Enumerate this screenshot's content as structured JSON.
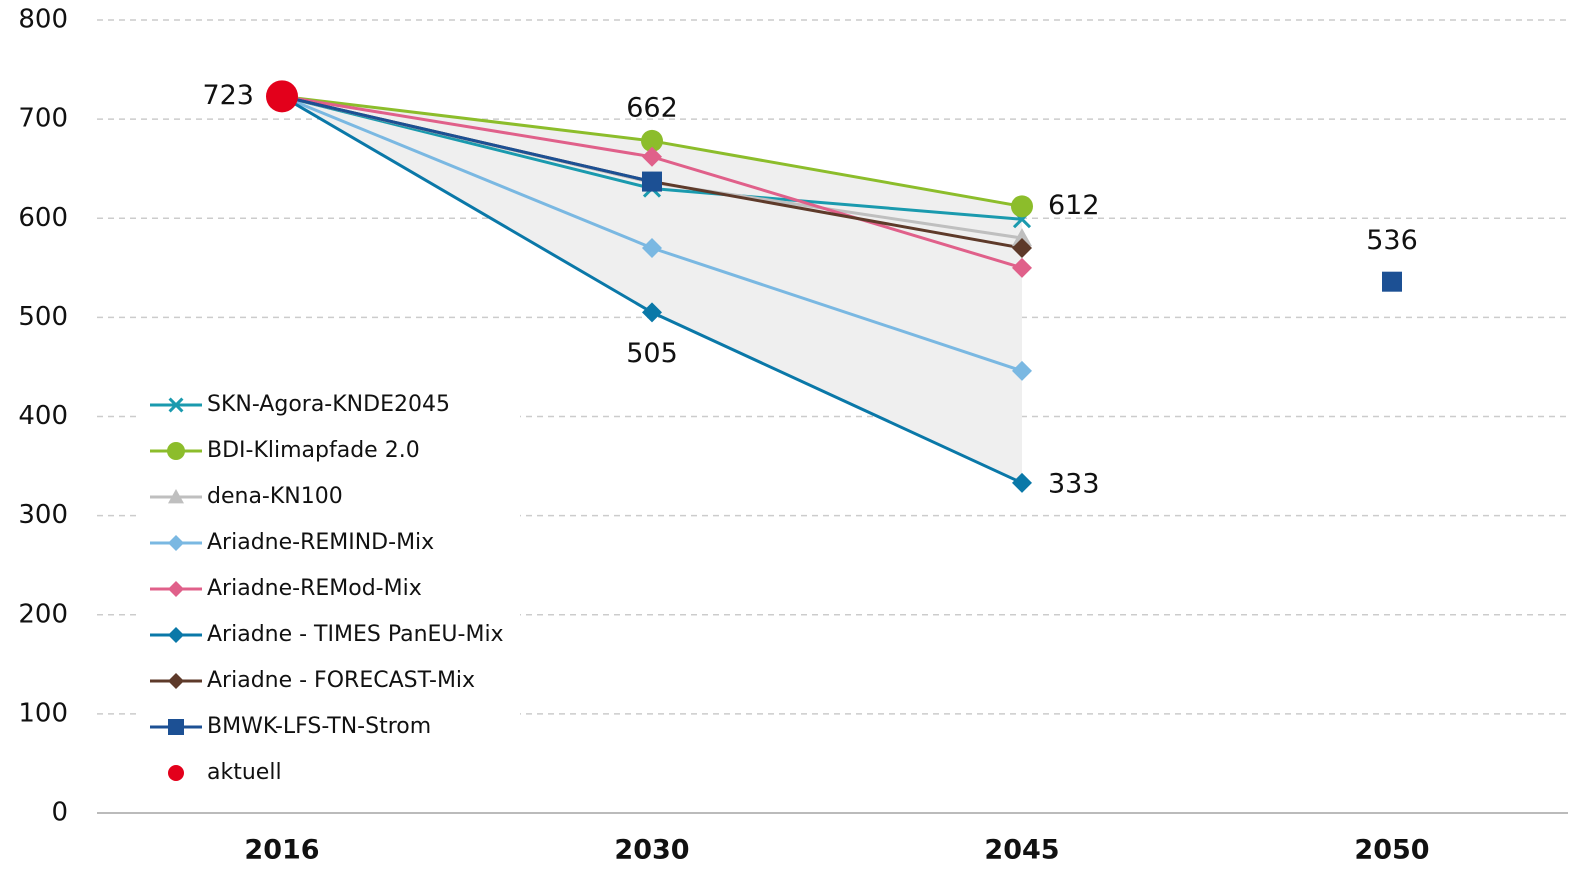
{
  "chart_data": {
    "type": "line",
    "categories": [
      "2016",
      "2030",
      "2045",
      "2050"
    ],
    "ylim": [
      0,
      800
    ],
    "yticks": [
      0,
      100,
      200,
      300,
      400,
      500,
      600,
      700,
      800
    ],
    "grid": true,
    "legend": "lower left",
    "range_band": true,
    "series": [
      {
        "name": "SKN-Agora-KNDE2045",
        "color": "#1a9aae",
        "marker": "x",
        "values": [
          723,
          630,
          599,
          null
        ]
      },
      {
        "name": "BDI-Klimapfade 2.0",
        "color": "#8cbd2b",
        "marker": "circle",
        "values": [
          723,
          678,
          612,
          null
        ],
        "value_labels": [
          null,
          null,
          "612",
          null
        ]
      },
      {
        "name": "dena-KN100",
        "color": "#bfbfbf",
        "marker": "triangle",
        "values": [
          723,
          636,
          580,
          null
        ]
      },
      {
        "name": "Ariadne-REMIND-Mix",
        "color": "#7ab8e2",
        "marker": "diamond",
        "values": [
          723,
          570,
          446,
          null
        ]
      },
      {
        "name": "Ariadne-REMod-Mix",
        "color": "#e0608a",
        "marker": "diamond",
        "values": [
          723,
          662,
          550,
          null
        ],
        "value_labels": [
          null,
          "662",
          null,
          null
        ]
      },
      {
        "name": "Ariadne - TIMES PanEU-Mix",
        "color": "#0a78a8",
        "marker": "diamond",
        "values": [
          723,
          505,
          333,
          null
        ],
        "value_labels": [
          null,
          "505",
          "333",
          null
        ]
      },
      {
        "name": "Ariadne - FORECAST-Mix",
        "color": "#5e3a2a",
        "marker": "diamond",
        "values": [
          723,
          637,
          570,
          null
        ]
      },
      {
        "name": "BMWK-LFS-TN-Strom",
        "color": "#1c5094",
        "marker": "square",
        "values": [
          723,
          637,
          null,
          536
        ],
        "value_labels": [
          null,
          null,
          null,
          "536"
        ]
      },
      {
        "name": "aktuell",
        "color": "#e3001b",
        "marker": "big-circle",
        "line": false,
        "values": [
          723,
          null,
          null,
          null
        ],
        "value_labels": [
          "723",
          null,
          null,
          null
        ]
      }
    ]
  }
}
